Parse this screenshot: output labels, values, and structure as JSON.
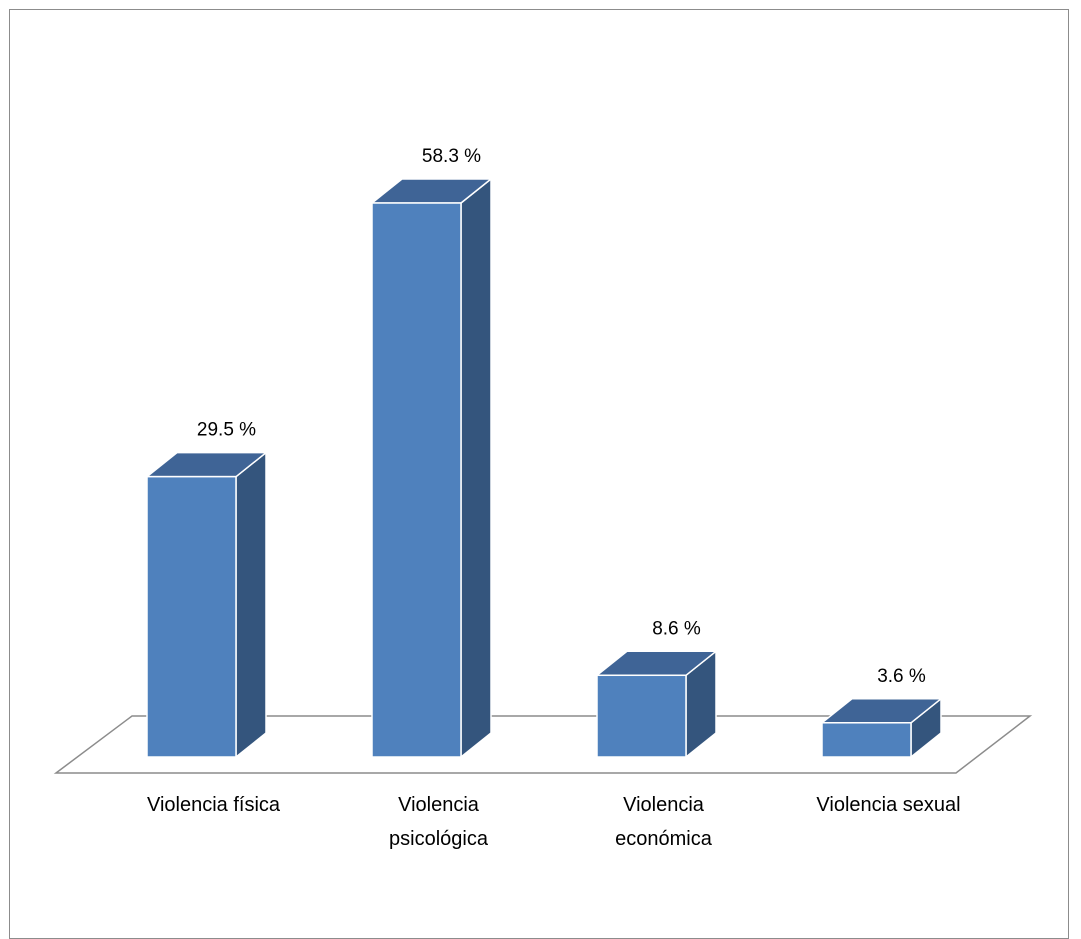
{
  "chart_data": {
    "type": "bar",
    "style": "3d-column",
    "categories": [
      [
        "Violencia física"
      ],
      [
        "Violencia",
        "psicológica"
      ],
      [
        "Violencia",
        "económica"
      ],
      [
        "Violencia sexual"
      ]
    ],
    "values": [
      29.5,
      58.3,
      8.6,
      3.6
    ],
    "value_labels": [
      "29.5 %",
      "58.3 %",
      "8.6 %",
      "3.6 %"
    ],
    "title": "",
    "xlabel": "",
    "ylabel": "",
    "ylim": [
      0,
      60
    ],
    "grid": false,
    "legend": "none",
    "colors": {
      "front": "#4f81bd",
      "side": "#34557d",
      "top": "#3f6496",
      "edge": "#ffffff",
      "floor_stroke": "#8c8c8c"
    }
  }
}
